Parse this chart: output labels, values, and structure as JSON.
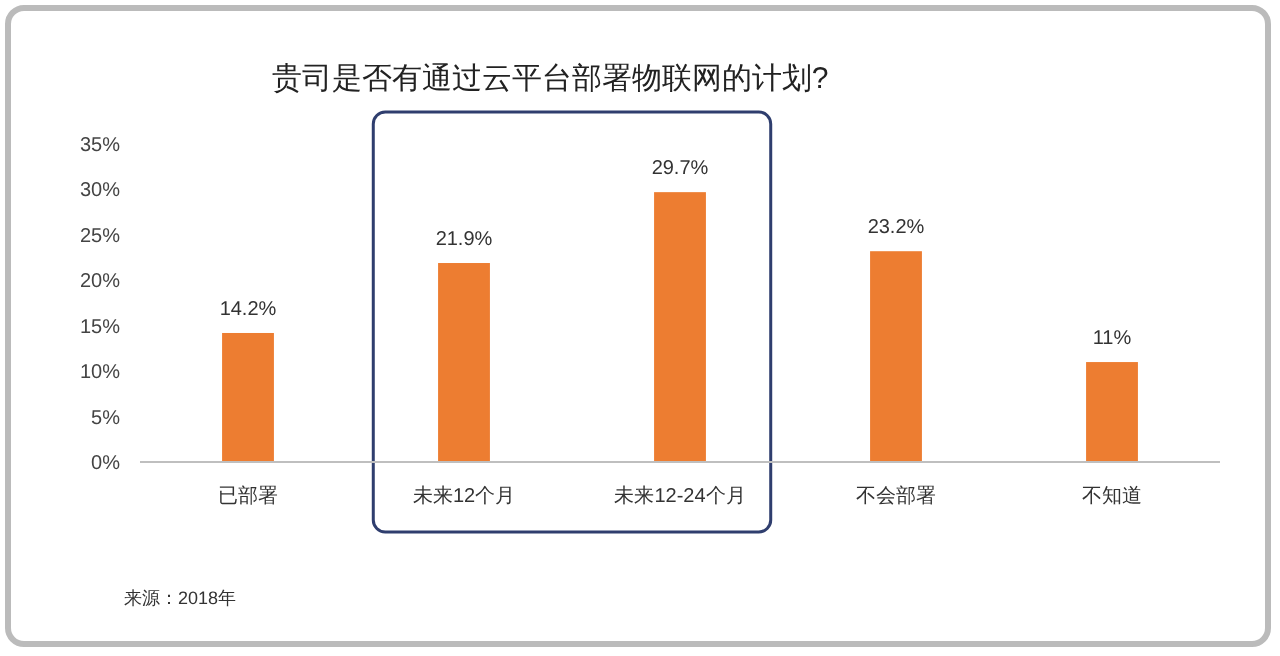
{
  "chart_data": {
    "type": "bar",
    "title": "贵司是否有通过云平台部署物联网的计划?",
    "categories": [
      "已部署",
      "未来12个月",
      "未来12-24个月",
      "不会部署",
      "不知道"
    ],
    "values": [
      14.2,
      21.9,
      29.7,
      23.2,
      11
    ],
    "value_labels": [
      "14.2%",
      "21.9%",
      "29.7%",
      "23.2%",
      "11%"
    ],
    "color": "#ed7d31",
    "ylim": [
      0,
      35
    ],
    "yticks": [
      {
        "value": 0,
        "label": "0%"
      },
      {
        "value": 5,
        "label": "5%"
      },
      {
        "value": 10,
        "label": "10%"
      },
      {
        "value": 15,
        "label": "15%"
      },
      {
        "value": 20,
        "label": "20%"
      },
      {
        "value": 25,
        "label": "25%"
      },
      {
        "value": 30,
        "label": "30%"
      },
      {
        "value": 35,
        "label": "35%"
      }
    ],
    "grid": false,
    "annotations": [
      "来源：2018年"
    ]
  }
}
